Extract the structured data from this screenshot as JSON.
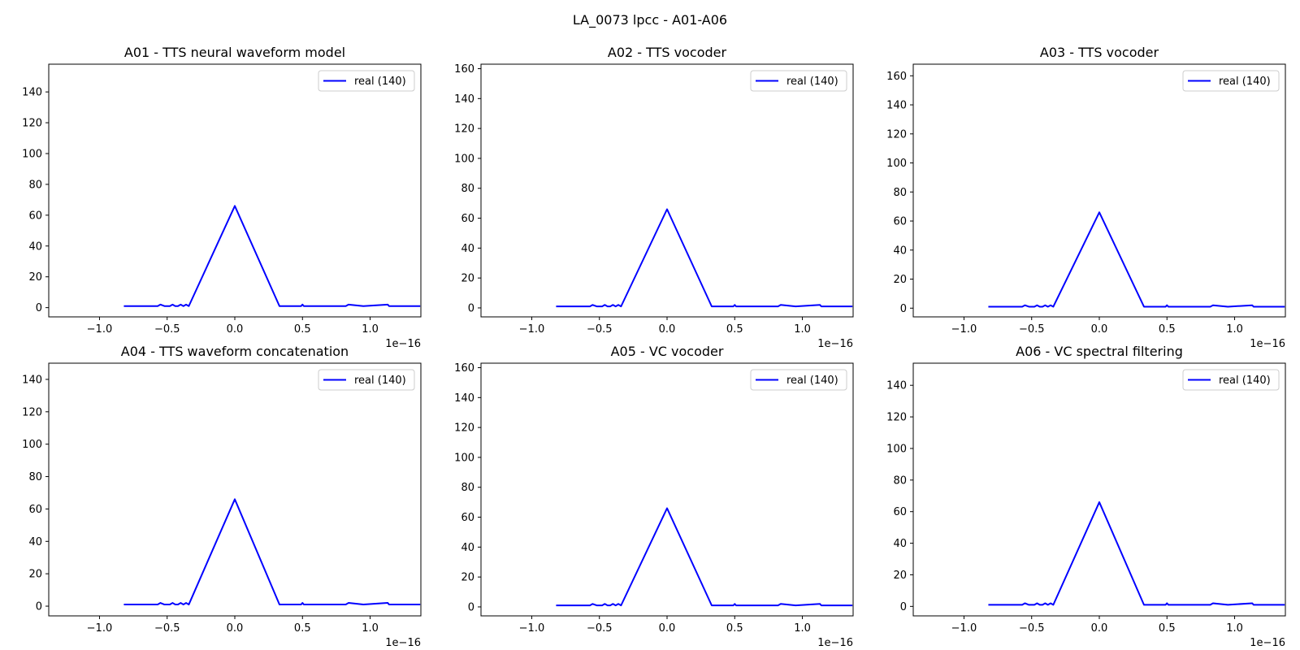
{
  "figure": {
    "suptitle": "LA_0073 lpcc - A01-A06"
  },
  "chart_data": [
    {
      "type": "line",
      "title": "A01 - TTS neural waveform model",
      "xlabel": "",
      "ylabel": "",
      "x_offset_label": "1e−16",
      "xlim": [
        -1.375,
        1.375
      ],
      "ylim": [
        -6,
        158
      ],
      "xticks": [
        -1.0,
        -0.5,
        0.0,
        0.5,
        1.0
      ],
      "xtick_labels": [
        "−1.0",
        "−0.5",
        "0.0",
        "0.5",
        "1.0"
      ],
      "yticks": [
        0,
        20,
        40,
        60,
        80,
        100,
        120,
        140
      ],
      "legend_position": "upper-right",
      "series": [
        {
          "name": "real (140)",
          "color": "#0000ff",
          "x": [
            -0.82,
            -0.57,
            -0.55,
            -0.52,
            -0.48,
            -0.46,
            -0.44,
            -0.42,
            -0.4,
            -0.38,
            -0.36,
            -0.34,
            0.0,
            0.33,
            0.49,
            0.5,
            0.51,
            0.82,
            0.84,
            0.95,
            1.13,
            1.14,
            1.37
          ],
          "y": [
            1,
            1,
            2,
            1,
            1,
            2,
            1,
            1,
            2,
            1,
            2,
            1,
            66,
            1,
            1,
            2,
            1,
            1,
            2,
            1,
            2,
            1,
            1
          ]
        }
      ]
    },
    {
      "type": "line",
      "title": "A02 - TTS vocoder",
      "xlabel": "",
      "ylabel": "",
      "x_offset_label": "1e−16",
      "xlim": [
        -1.375,
        1.375
      ],
      "ylim": [
        -6,
        163
      ],
      "xticks": [
        -1.0,
        -0.5,
        0.0,
        0.5,
        1.0
      ],
      "xtick_labels": [
        "−1.0",
        "−0.5",
        "0.0",
        "0.5",
        "1.0"
      ],
      "yticks": [
        0,
        20,
        40,
        60,
        80,
        100,
        120,
        140,
        160
      ],
      "legend_position": "upper-right",
      "series": [
        {
          "name": "real (140)",
          "color": "#0000ff",
          "x": [
            -0.82,
            -0.57,
            -0.55,
            -0.52,
            -0.48,
            -0.46,
            -0.44,
            -0.42,
            -0.4,
            -0.38,
            -0.36,
            -0.34,
            0.0,
            0.33,
            0.49,
            0.5,
            0.51,
            0.82,
            0.84,
            0.95,
            1.13,
            1.14,
            1.37
          ],
          "y": [
            1,
            1,
            2,
            1,
            1,
            2,
            1,
            1,
            2,
            1,
            2,
            1,
            66,
            1,
            1,
            2,
            1,
            1,
            2,
            1,
            2,
            1,
            1
          ]
        }
      ]
    },
    {
      "type": "line",
      "title": "A03 - TTS vocoder",
      "xlabel": "",
      "ylabel": "",
      "x_offset_label": "1e−16",
      "xlim": [
        -1.375,
        1.375
      ],
      "ylim": [
        -6,
        168
      ],
      "xticks": [
        -1.0,
        -0.5,
        0.0,
        0.5,
        1.0
      ],
      "xtick_labels": [
        "−1.0",
        "−0.5",
        "0.0",
        "0.5",
        "1.0"
      ],
      "yticks": [
        0,
        20,
        40,
        60,
        80,
        100,
        120,
        140,
        160
      ],
      "legend_position": "upper-right",
      "series": [
        {
          "name": "real (140)",
          "color": "#0000ff",
          "x": [
            -0.82,
            -0.57,
            -0.55,
            -0.52,
            -0.48,
            -0.46,
            -0.44,
            -0.42,
            -0.4,
            -0.38,
            -0.36,
            -0.34,
            0.0,
            0.33,
            0.49,
            0.5,
            0.51,
            0.82,
            0.84,
            0.95,
            1.13,
            1.14,
            1.37
          ],
          "y": [
            1,
            1,
            2,
            1,
            1,
            2,
            1,
            1,
            2,
            1,
            2,
            1,
            66,
            1,
            1,
            2,
            1,
            1,
            2,
            1,
            2,
            1,
            1
          ]
        }
      ]
    },
    {
      "type": "line",
      "title": "A04 - TTS waveform concatenation",
      "xlabel": "",
      "ylabel": "",
      "x_offset_label": "1e−16",
      "xlim": [
        -1.375,
        1.375
      ],
      "ylim": [
        -6,
        150
      ],
      "xticks": [
        -1.0,
        -0.5,
        0.0,
        0.5,
        1.0
      ],
      "xtick_labels": [
        "−1.0",
        "−0.5",
        "0.0",
        "0.5",
        "1.0"
      ],
      "yticks": [
        0,
        20,
        40,
        60,
        80,
        100,
        120,
        140
      ],
      "legend_position": "upper-right",
      "series": [
        {
          "name": "real (140)",
          "color": "#0000ff",
          "x": [
            -0.82,
            -0.57,
            -0.55,
            -0.52,
            -0.48,
            -0.46,
            -0.44,
            -0.42,
            -0.4,
            -0.38,
            -0.36,
            -0.34,
            0.0,
            0.33,
            0.49,
            0.5,
            0.51,
            0.82,
            0.84,
            0.95,
            1.13,
            1.14,
            1.37
          ],
          "y": [
            1,
            1,
            2,
            1,
            1,
            2,
            1,
            1,
            2,
            1,
            2,
            1,
            66,
            1,
            1,
            2,
            1,
            1,
            2,
            1,
            2,
            1,
            1
          ]
        }
      ]
    },
    {
      "type": "line",
      "title": "A05 - VC vocoder",
      "xlabel": "",
      "ylabel": "",
      "x_offset_label": "1e−16",
      "xlim": [
        -1.375,
        1.375
      ],
      "ylim": [
        -6,
        163
      ],
      "xticks": [
        -1.0,
        -0.5,
        0.0,
        0.5,
        1.0
      ],
      "xtick_labels": [
        "−1.0",
        "−0.5",
        "0.0",
        "0.5",
        "1.0"
      ],
      "yticks": [
        0,
        20,
        40,
        60,
        80,
        100,
        120,
        140,
        160
      ],
      "legend_position": "upper-right",
      "series": [
        {
          "name": "real (140)",
          "color": "#0000ff",
          "x": [
            -0.82,
            -0.57,
            -0.55,
            -0.52,
            -0.48,
            -0.46,
            -0.44,
            -0.42,
            -0.4,
            -0.38,
            -0.36,
            -0.34,
            0.0,
            0.33,
            0.49,
            0.5,
            0.51,
            0.82,
            0.84,
            0.95,
            1.13,
            1.14,
            1.37
          ],
          "y": [
            1,
            1,
            2,
            1,
            1,
            2,
            1,
            1,
            2,
            1,
            2,
            1,
            66,
            1,
            1,
            2,
            1,
            1,
            2,
            1,
            2,
            1,
            1
          ]
        }
      ]
    },
    {
      "type": "line",
      "title": "A06 - VC spectral filtering",
      "xlabel": "",
      "ylabel": "",
      "x_offset_label": "1e−16",
      "xlim": [
        -1.375,
        1.375
      ],
      "ylim": [
        -6,
        154
      ],
      "xticks": [
        -1.0,
        -0.5,
        0.0,
        0.5,
        1.0
      ],
      "xtick_labels": [
        "−1.0",
        "−0.5",
        "0.0",
        "0.5",
        "1.0"
      ],
      "yticks": [
        0,
        20,
        40,
        60,
        80,
        100,
        120,
        140
      ],
      "legend_position": "upper-right",
      "series": [
        {
          "name": "real (140)",
          "color": "#0000ff",
          "x": [
            -0.82,
            -0.57,
            -0.55,
            -0.52,
            -0.48,
            -0.46,
            -0.44,
            -0.42,
            -0.4,
            -0.38,
            -0.36,
            -0.34,
            0.0,
            0.33,
            0.49,
            0.5,
            0.51,
            0.82,
            0.84,
            0.95,
            1.13,
            1.14,
            1.37
          ],
          "y": [
            1,
            1,
            2,
            1,
            1,
            2,
            1,
            1,
            2,
            1,
            2,
            1,
            66,
            1,
            1,
            2,
            1,
            1,
            2,
            1,
            2,
            1,
            1
          ]
        }
      ]
    }
  ]
}
